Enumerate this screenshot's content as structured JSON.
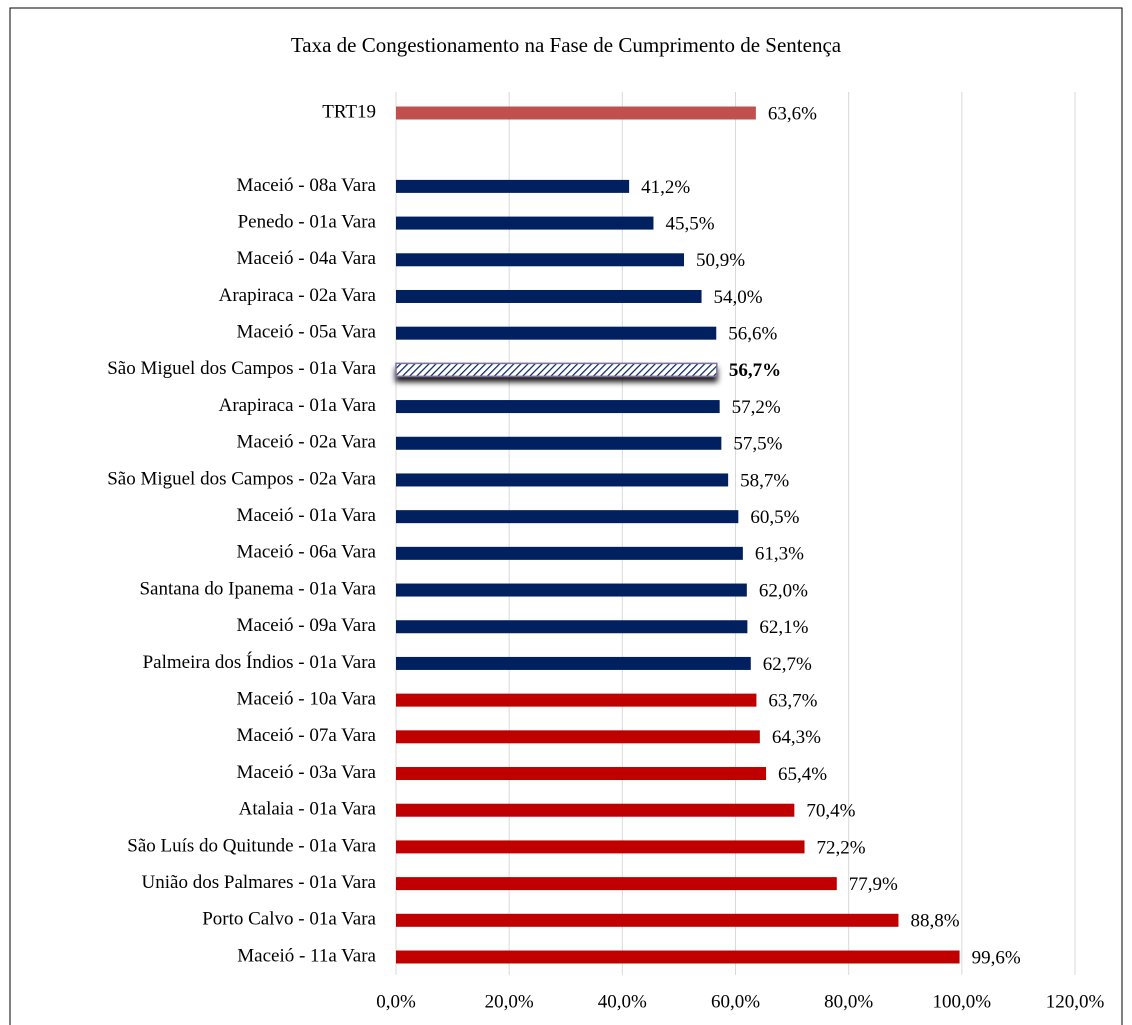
{
  "chart_data": {
    "type": "barh",
    "title": "Taxa de Congestionamento na Fase de Cumprimento de Sentença",
    "categories": [
      "TRT19",
      null,
      "Maceió - 08a Vara",
      "Penedo - 01a Vara",
      "Maceió - 04a Vara",
      "Arapiraca - 02a Vara",
      "Maceió - 05a Vara",
      "São Miguel dos Campos - 01a Vara",
      "Arapiraca - 01a Vara",
      "Maceió - 02a Vara",
      "São Miguel dos Campos - 02a Vara",
      "Maceió - 01a Vara",
      "Maceió - 06a Vara",
      "Santana do Ipanema - 01a Vara",
      "Maceió - 09a Vara",
      "Palmeira dos Índios - 01a Vara",
      "Maceió - 10a Vara",
      "Maceió - 07a Vara",
      "Maceió - 03a Vara",
      "Atalaia - 01a Vara",
      "São Luís do Quitunde - 01a Vara",
      "União dos Palmares - 01a Vara",
      "Porto Calvo - 01a Vara",
      "Maceió - 11a Vara"
    ],
    "values": [
      63.6,
      null,
      41.2,
      45.5,
      50.9,
      54.0,
      56.6,
      56.7,
      57.2,
      57.5,
      58.7,
      60.5,
      61.3,
      62.0,
      62.1,
      62.7,
      63.7,
      64.3,
      65.4,
      70.4,
      72.2,
      77.9,
      88.8,
      99.6
    ],
    "value_labels": [
      "63,6%",
      null,
      "41,2%",
      "45,5%",
      "50,9%",
      "54,0%",
      "56,6%",
      "56,7%",
      "57,2%",
      "57,5%",
      "58,7%",
      "60,5%",
      "61,3%",
      "62,0%",
      "62,1%",
      "62,7%",
      "63,7%",
      "64,3%",
      "65,4%",
      "70,4%",
      "72,2%",
      "77,9%",
      "88,8%",
      "99,6%"
    ],
    "colors": [
      "#c0504d",
      null,
      "#002060",
      "#002060",
      "#002060",
      "#002060",
      "#002060",
      "#002060",
      "#002060",
      "#002060",
      "#002060",
      "#002060",
      "#002060",
      "#002060",
      "#002060",
      "#002060",
      "#c00000",
      "#c00000",
      "#c00000",
      "#c00000",
      "#c00000",
      "#c00000",
      "#c00000",
      "#c00000"
    ],
    "highlighted": 7,
    "xlim": [
      0,
      120
    ],
    "xticks": [
      {
        "value": 0,
        "label": "0,0%"
      },
      {
        "value": 20,
        "label": "20,0%"
      },
      {
        "value": 40,
        "label": "40,0%"
      },
      {
        "value": 60,
        "label": "60,0%"
      },
      {
        "value": 80,
        "label": "80,0%"
      },
      {
        "value": 100,
        "label": "100,0%"
      },
      {
        "value": 120,
        "label": "120,0%"
      }
    ],
    "grid": true
  }
}
